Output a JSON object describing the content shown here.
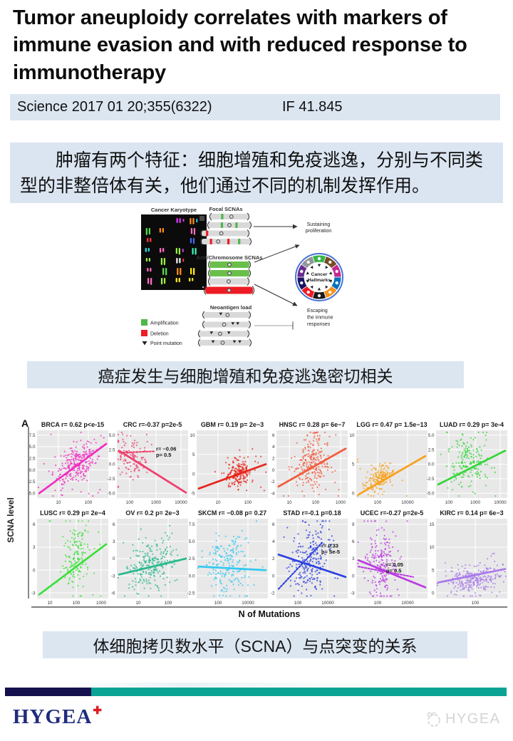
{
  "title": "Tumor aneuploidy correlates with markers of immune evasion and with reduced response to immunotherapy",
  "citation": {
    "text": "Science 2017 01 20;355(6322)",
    "impact_factor": "IF 41.845"
  },
  "summary_cn": "肿瘤有两个特征：细胞增殖和免疫逃逸，分别与不同类型的非整倍体有关，他们通过不同的机制发挥作用。",
  "caption1": "癌症发生与细胞增殖和免疫逃逸密切相关",
  "caption2": "体细胞拷贝数水平（SCNA）与点突变的关系",
  "diagram": {
    "karyotype_label": "Cancer Karyotype",
    "focal_label": "Focal SCNAs",
    "arm_label": "Arm/Chromosome SCNAs",
    "neoantigen_label": "Neoantigen load",
    "sustaining_lines": [
      "Sustaining",
      "proliferation"
    ],
    "escaping_lines": [
      "Escaping",
      "the immune",
      "responses"
    ],
    "hallmarks_lines": [
      "Cancer",
      "Hallmarks"
    ],
    "legend": [
      {
        "color": "#4db848",
        "label": "Amplification"
      },
      {
        "color": "#ed1c24",
        "label": "Deletion"
      },
      {
        "symbol": "triangle-down",
        "label": "Point mutation"
      }
    ],
    "wheel_colors": [
      "#39b54a",
      "#754c24",
      "#c4298f",
      "#0071bc",
      "#f7931e",
      "#1a1a1a",
      "#ed1c24",
      "#1b1464",
      "#662d91",
      "#939598"
    ],
    "karyotype_palette": [
      "#ff3b3b",
      "#ff8c1a",
      "#ffe81a",
      "#58d94e",
      "#31d7e8",
      "#3f6cf0",
      "#d93bf0",
      "#ff6ec0",
      "#f0f0f0",
      "#9cf046",
      "#f0b0ff",
      "#40f0b0"
    ]
  },
  "chart_data": {
    "type": "scatter",
    "panel_label": "A",
    "xlabel": "N of Mutations",
    "ylabel": "SCNA level",
    "x_scale": "log",
    "grid": true,
    "panels": [
      {
        "label": "BRCA",
        "stats": "r= 0.62 p<e-15",
        "color": "#f02dc2",
        "y_ticks": [
          "7.5",
          "5.0",
          "2.5",
          "0.0",
          "-2.5",
          "-5.0"
        ],
        "x_ticks": [
          "10",
          "100"
        ],
        "seed": 11,
        "cloud": {
          "n": 270,
          "cx": 0.55,
          "cy": 0.5,
          "sx": 0.15,
          "sy": 0.16,
          "rho": 0.5
        },
        "trend": {
          "x1": 0.03,
          "y1": 0.93,
          "x2": 0.97,
          "y2": 0.2
        }
      },
      {
        "label": "CRC",
        "stats": "r=-0.37 p=2e-5",
        "color": "#ee3f6e",
        "y_ticks": [
          "5.0",
          "2.5",
          "0.0",
          "-2.5",
          "-5.0"
        ],
        "x_ticks": [
          "100",
          "1000",
          "10000"
        ],
        "seed": 22,
        "cloud": {
          "n": 120,
          "cx": 0.22,
          "cy": 0.42,
          "sx": 0.12,
          "sy": 0.16,
          "rho": -0.25
        },
        "trend": {
          "x1": 0.03,
          "y1": 0.3,
          "x2": 0.97,
          "y2": 0.92
        },
        "dotted": {
          "x1": 0.04,
          "y1": 0.33,
          "x2": 0.52,
          "y2": 0.31
        },
        "annotation": {
          "lines": [
            "r= −0.06",
            "p= 0.5"
          ],
          "x": 0.55,
          "y": 0.3
        }
      },
      {
        "label": "GBM",
        "stats": "r= 0.19 p= 2e−3",
        "color": "#e8261c",
        "y_ticks": [
          "10",
          "5",
          "0",
          "-5"
        ],
        "x_ticks": [
          "10",
          "100"
        ],
        "seed": 33,
        "cloud": {
          "n": 200,
          "cx": 0.6,
          "cy": 0.63,
          "sx": 0.09,
          "sy": 0.1,
          "rho": 0.15
        },
        "trend": {
          "x1": 0.03,
          "y1": 0.86,
          "x2": 0.97,
          "y2": 0.5
        }
      },
      {
        "label": "HNSC",
        "stats": "r= 0.28 p= 6e−7",
        "color": "#f25a3c",
        "y_ticks": [
          "6",
          "4",
          "2",
          "0",
          "-2",
          "-4"
        ],
        "x_ticks": [
          "10",
          "100",
          "1000"
        ],
        "seed": 44,
        "cloud": {
          "n": 240,
          "cx": 0.5,
          "cy": 0.45,
          "sx": 0.12,
          "sy": 0.2,
          "rho": 0.2
        },
        "trend": {
          "x1": 0.03,
          "y1": 0.83,
          "x2": 0.97,
          "y2": 0.27
        }
      },
      {
        "label": "LGG",
        "stats": "r= 0.47 p= 1.5e−13",
        "color": "#f7a11e",
        "y_ticks": [
          "10",
          "5",
          "0"
        ],
        "x_ticks": [
          "100",
          "10000"
        ],
        "seed": 55,
        "cloud": {
          "n": 210,
          "cx": 0.33,
          "cy": 0.7,
          "sx": 0.09,
          "sy": 0.09,
          "rho": 0.35
        },
        "trend": {
          "x1": 0.03,
          "y1": 0.95,
          "x2": 0.97,
          "y2": 0.38
        }
      },
      {
        "label": "LUAD",
        "stats": "r= 0.29 p= 3e-4",
        "color": "#35d63a",
        "y_ticks": [
          "5.0",
          "2.5",
          "0.0",
          "-2.5",
          "-5.0"
        ],
        "x_ticks": [
          "100",
          "1000",
          "10000"
        ],
        "seed": 66,
        "cloud": {
          "n": 190,
          "cx": 0.45,
          "cy": 0.45,
          "sx": 0.14,
          "sy": 0.18,
          "rho": 0.15
        },
        "trend": {
          "x1": 0.03,
          "y1": 0.8,
          "x2": 0.97,
          "y2": 0.3
        }
      },
      {
        "label": "LUSC",
        "stats": "r= 0.29 p= 2e−4",
        "color": "#3ce03c",
        "y_ticks": [
          "6",
          "3",
          "0",
          "-3"
        ],
        "x_ticks": [
          "10",
          "100",
          "1000"
        ],
        "seed": 77,
        "cloud": {
          "n": 170,
          "cx": 0.55,
          "cy": 0.45,
          "sx": 0.1,
          "sy": 0.2,
          "rho": 0.15
        },
        "trend": {
          "x1": 0.03,
          "y1": 0.95,
          "x2": 0.97,
          "y2": 0.32
        }
      },
      {
        "label": "OV",
        "stats": "r= 0.2 p= 2e−3",
        "color": "#26b98e",
        "y_ticks": [
          "6",
          "3",
          "0",
          "-3",
          "-6"
        ],
        "x_ticks": [
          "10",
          "100"
        ],
        "seed": 88,
        "cloud": {
          "n": 230,
          "cx": 0.5,
          "cy": 0.55,
          "sx": 0.17,
          "sy": 0.15,
          "rho": 0.12
        },
        "trend": {
          "x1": 0.03,
          "y1": 0.7,
          "x2": 0.97,
          "y2": 0.5
        }
      },
      {
        "label": "SKCM",
        "stats": "r= −0.08 p= 0.27",
        "color": "#35c8f2",
        "y_ticks": [
          "7.5",
          "5.0",
          "2.5",
          "0.0",
          "-2.5"
        ],
        "x_ticks": [
          "100",
          "10000"
        ],
        "seed": 99,
        "cloud": {
          "n": 210,
          "cx": 0.45,
          "cy": 0.55,
          "sx": 0.16,
          "sy": 0.18,
          "rho": -0.03
        },
        "trend": {
          "x1": 0.03,
          "y1": 0.6,
          "x2": 0.97,
          "y2": 0.645
        }
      },
      {
        "label": "STAD",
        "stats": "r=-0.1 p=0.18",
        "color": "#2b3fe0",
        "y_ticks": [
          "6",
          "4",
          "2",
          "0",
          "-2"
        ],
        "x_ticks": [
          "100",
          "10000"
        ],
        "seed": 110,
        "cloud": {
          "n": 230,
          "cx": 0.48,
          "cy": 0.5,
          "sx": 0.13,
          "sy": 0.22,
          "rho": 0.1
        },
        "trend": {
          "x1": 0.03,
          "y1": 0.45,
          "x2": 0.97,
          "y2": 0.73
        },
        "dotted": {
          "x1": 0.03,
          "y1": 0.88,
          "x2": 0.64,
          "y2": 0.3
        },
        "annotation": {
          "lines": [
            "r= 0.33",
            "p= 5e-5"
          ],
          "x": 0.63,
          "y": 0.36
        }
      },
      {
        "label": "UCEC",
        "stats": "r=-0.27 p=2e-5",
        "color": "#bb3be0",
        "y_ticks": [
          "9",
          "6",
          "3",
          "0",
          "-3"
        ],
        "x_ticks": [
          "100",
          "10000"
        ],
        "seed": 121,
        "cloud": {
          "n": 200,
          "cx": 0.35,
          "cy": 0.55,
          "sx": 0.11,
          "sy": 0.22,
          "rho": -0.1
        },
        "trend": {
          "x1": 0.03,
          "y1": 0.52,
          "x2": 0.97,
          "y2": 0.86
        },
        "dotted": {
          "x1": 0.03,
          "y1": 0.6,
          "x2": 0.8,
          "y2": 0.73
        },
        "annotation": {
          "lines": [
            "r= 0.05",
            "p= 0.5"
          ],
          "x": 0.42,
          "y": 0.6
        }
      },
      {
        "label": "KIRC",
        "stats": "r= 0.14 p= 6e−3",
        "color": "#a879ea",
        "y_ticks": [
          "15",
          "10",
          "5",
          "0"
        ],
        "x_ticks": [
          "100"
        ],
        "seed": 132,
        "cloud": {
          "n": 260,
          "cx": 0.55,
          "cy": 0.75,
          "sx": 0.19,
          "sy": 0.09,
          "rho": 0.1
        },
        "trend": {
          "x1": 0.03,
          "y1": 0.8,
          "x2": 0.97,
          "y2": 0.63
        }
      }
    ]
  },
  "footer": {
    "logo": "HYGEA",
    "logo_plus": "✚",
    "watermark": "HYGEA",
    "bar_navy": "#15104e",
    "bar_teal": "#0ba394"
  }
}
